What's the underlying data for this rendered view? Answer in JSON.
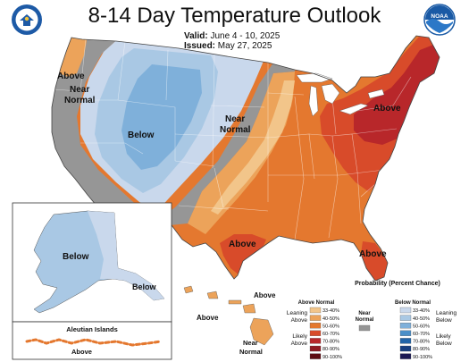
{
  "header": {
    "title": "8-14 Day Temperature Outlook",
    "valid_label": "Valid:",
    "valid_value": "June 4 - 10, 2025",
    "issued_label": "Issued:",
    "issued_value": "May 27, 2025"
  },
  "logos": {
    "left": "us-department-of-commerce-seal",
    "right": "noaa-logo",
    "right_text": "NOAA"
  },
  "map_labels": {
    "above_nw": "Above",
    "near_normal_nw": "Near Normal",
    "below_west": "Below",
    "near_normal_central": "Near Normal",
    "above_ne": "Above",
    "above_tx": "Above",
    "above_fl": "Above",
    "below_ak": "Below",
    "below_ak_se": "Below",
    "above_hi": "Above",
    "above_hi_2": "Above",
    "near_normal_hi": "Near Normal",
    "aleutian_title": "Aleutian Islands",
    "above_aleutian": "Above"
  },
  "legend": {
    "title": "Probability (Percent Chance)",
    "above_header": "Above Normal",
    "below_header": "Below Normal",
    "near_normal": "Near Normal",
    "leaning_above": "Leaning Above",
    "likely_above": "Likely Above",
    "leaning_below": "Leaning Below",
    "likely_below": "Likely Below",
    "ranges": [
      "33-40%",
      "40-50%",
      "50-60%",
      "60-70%",
      "70-80%",
      "80-90%",
      "90-100%"
    ],
    "above_colors": [
      "#f2c58a",
      "#eca35a",
      "#e4782f",
      "#d84b2a",
      "#b8272a",
      "#8f1a22",
      "#5e0c12"
    ],
    "below_colors": [
      "#c9d8ec",
      "#a9c8e4",
      "#7fb0da",
      "#4a8fc8",
      "#2164a8",
      "#183f80",
      "#1b1953"
    ],
    "near_color": "#969696"
  }
}
